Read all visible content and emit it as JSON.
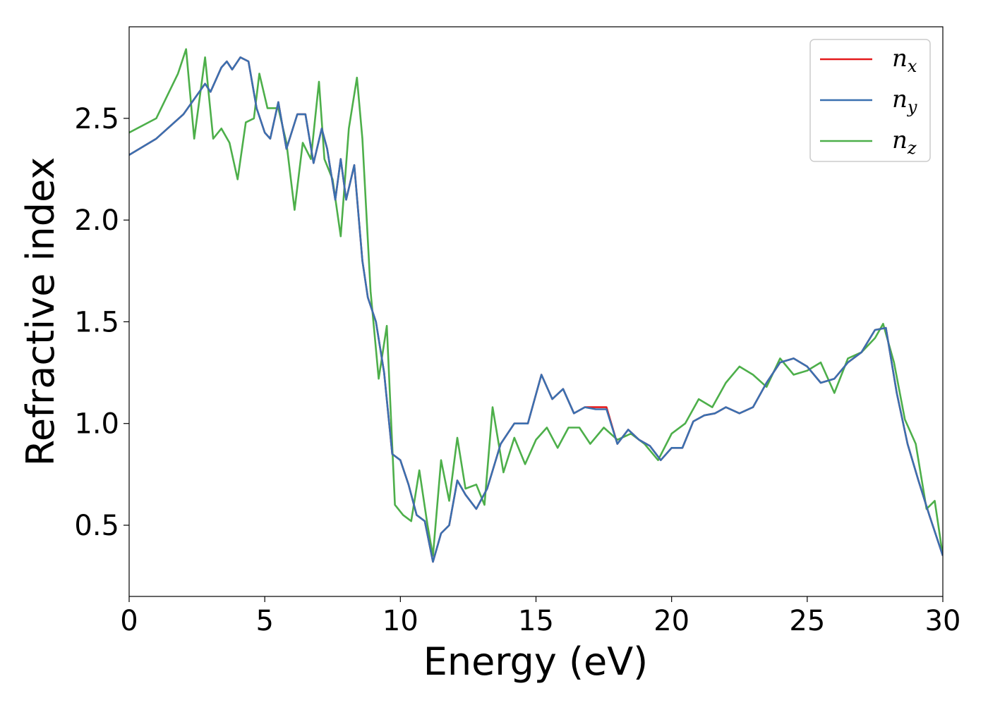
{
  "chart_data": {
    "type": "line",
    "title": "",
    "xlabel": "Energy (eV)",
    "ylabel": "Refractive index",
    "xlim": [
      0,
      30
    ],
    "ylim": [
      0.15,
      2.95
    ],
    "xticks": [
      0,
      5,
      10,
      15,
      20,
      25,
      30
    ],
    "xtick_labels": [
      "0",
      "5",
      "10",
      "15",
      "20",
      "25",
      "30"
    ],
    "yticks": [
      0.5,
      1.0,
      1.5,
      2.0,
      2.5
    ],
    "ytick_labels": [
      "0.5",
      "1.0",
      "1.5",
      "2.0",
      "2.5"
    ],
    "grid": false,
    "legend_position": "top-right",
    "series": [
      {
        "name": "n",
        "subscript": "x",
        "color": "#e41a1c",
        "x": [
          0,
          1,
          2,
          2.8,
          3,
          3.4,
          3.6,
          3.8,
          4.1,
          4.4,
          4.7,
          5.0,
          5.2,
          5.5,
          5.8,
          6.2,
          6.5,
          6.8,
          7.1,
          7.3,
          7.6,
          7.8,
          8.0,
          8.3,
          8.6,
          8.8,
          9.1,
          9.4,
          9.7,
          10.0,
          10.3,
          10.6,
          10.9,
          11.2,
          11.5,
          11.8,
          12.1,
          12.4,
          12.8,
          13.2,
          13.7,
          14.2,
          14.7,
          15.2,
          15.6,
          16.0,
          16.4,
          16.8,
          17.2,
          17.6,
          18.0,
          18.4,
          18.8,
          19.2,
          19.6,
          20.0,
          20.4,
          20.8,
          21.2,
          21.6,
          22.0,
          22.5,
          23.0,
          23.5,
          24.0,
          24.5,
          25.0,
          25.5,
          26.0,
          26.5,
          27.0,
          27.5,
          27.9,
          28.3,
          28.7,
          29.1,
          29.5,
          30.0
        ],
        "y": [
          2.32,
          2.4,
          2.52,
          2.67,
          2.63,
          2.75,
          2.78,
          2.74,
          2.8,
          2.78,
          2.55,
          2.43,
          2.4,
          2.58,
          2.35,
          2.52,
          2.52,
          2.28,
          2.45,
          2.35,
          2.1,
          2.3,
          2.1,
          2.27,
          1.8,
          1.62,
          1.5,
          1.25,
          0.85,
          0.82,
          0.7,
          0.55,
          0.52,
          0.32,
          0.46,
          0.5,
          0.72,
          0.65,
          0.58,
          0.68,
          0.9,
          1.0,
          1.0,
          1.24,
          1.12,
          1.17,
          1.05,
          1.08,
          1.08,
          1.08,
          0.9,
          0.97,
          0.92,
          0.89,
          0.82,
          0.88,
          0.88,
          1.01,
          1.04,
          1.05,
          1.08,
          1.05,
          1.08,
          1.2,
          1.3,
          1.32,
          1.28,
          1.2,
          1.22,
          1.3,
          1.35,
          1.46,
          1.47,
          1.15,
          0.9,
          0.72,
          0.55,
          0.35
        ]
      },
      {
        "name": "n",
        "subscript": "y",
        "color": "#3a70b0",
        "x": [
          0,
          1,
          2,
          2.8,
          3,
          3.4,
          3.6,
          3.8,
          4.1,
          4.4,
          4.7,
          5.0,
          5.2,
          5.5,
          5.8,
          6.2,
          6.5,
          6.8,
          7.1,
          7.3,
          7.6,
          7.8,
          8.0,
          8.3,
          8.6,
          8.8,
          9.1,
          9.4,
          9.7,
          10.0,
          10.3,
          10.6,
          10.9,
          11.2,
          11.5,
          11.8,
          12.1,
          12.4,
          12.8,
          13.2,
          13.7,
          14.2,
          14.7,
          15.2,
          15.6,
          16.0,
          16.4,
          16.8,
          17.2,
          17.6,
          18.0,
          18.4,
          18.8,
          19.2,
          19.6,
          20.0,
          20.4,
          20.8,
          21.2,
          21.6,
          22.0,
          22.5,
          23.0,
          23.5,
          24.0,
          24.5,
          25.0,
          25.5,
          26.0,
          26.5,
          27.0,
          27.5,
          27.9,
          28.3,
          28.7,
          29.1,
          29.5,
          30.0
        ],
        "y": [
          2.32,
          2.4,
          2.52,
          2.67,
          2.63,
          2.75,
          2.78,
          2.74,
          2.8,
          2.78,
          2.55,
          2.43,
          2.4,
          2.58,
          2.35,
          2.52,
          2.52,
          2.28,
          2.45,
          2.35,
          2.1,
          2.3,
          2.1,
          2.27,
          1.8,
          1.62,
          1.5,
          1.25,
          0.85,
          0.82,
          0.7,
          0.55,
          0.52,
          0.32,
          0.46,
          0.5,
          0.72,
          0.65,
          0.58,
          0.68,
          0.9,
          1.0,
          1.0,
          1.24,
          1.12,
          1.17,
          1.05,
          1.08,
          1.07,
          1.07,
          0.9,
          0.97,
          0.92,
          0.89,
          0.82,
          0.88,
          0.88,
          1.01,
          1.04,
          1.05,
          1.08,
          1.05,
          1.08,
          1.2,
          1.3,
          1.32,
          1.28,
          1.2,
          1.22,
          1.3,
          1.35,
          1.46,
          1.47,
          1.15,
          0.9,
          0.72,
          0.55,
          0.35
        ]
      },
      {
        "name": "n",
        "subscript": "z",
        "color": "#4daf4a",
        "x": [
          0,
          1,
          1.8,
          2.1,
          2.4,
          2.8,
          3.1,
          3.4,
          3.7,
          4.0,
          4.3,
          4.6,
          4.8,
          5.1,
          5.5,
          5.8,
          6.1,
          6.4,
          6.7,
          7.0,
          7.2,
          7.5,
          7.8,
          8.1,
          8.4,
          8.6,
          8.9,
          9.2,
          9.5,
          9.8,
          10.1,
          10.4,
          10.7,
          11.0,
          11.2,
          11.5,
          11.8,
          12.1,
          12.4,
          12.8,
          13.1,
          13.4,
          13.8,
          14.2,
          14.6,
          15.0,
          15.4,
          15.8,
          16.2,
          16.6,
          17.0,
          17.5,
          18.0,
          18.5,
          19.0,
          19.5,
          20.0,
          20.5,
          21.0,
          21.5,
          22.0,
          22.5,
          23.0,
          23.5,
          24.0,
          24.5,
          25.0,
          25.5,
          26.0,
          26.5,
          27.0,
          27.5,
          27.8,
          28.2,
          28.6,
          29.0,
          29.4,
          29.7,
          30.0
        ],
        "y": [
          2.43,
          2.5,
          2.72,
          2.84,
          2.4,
          2.8,
          2.4,
          2.45,
          2.38,
          2.2,
          2.48,
          2.5,
          2.72,
          2.55,
          2.55,
          2.38,
          2.05,
          2.38,
          2.3,
          2.68,
          2.3,
          2.2,
          1.92,
          2.45,
          2.7,
          2.4,
          1.65,
          1.22,
          1.48,
          0.6,
          0.55,
          0.52,
          0.77,
          0.5,
          0.35,
          0.82,
          0.62,
          0.93,
          0.68,
          0.7,
          0.6,
          1.08,
          0.76,
          0.93,
          0.8,
          0.92,
          0.98,
          0.88,
          0.98,
          0.98,
          0.9,
          0.98,
          0.92,
          0.95,
          0.9,
          0.82,
          0.95,
          1.0,
          1.12,
          1.08,
          1.2,
          1.28,
          1.24,
          1.18,
          1.32,
          1.24,
          1.26,
          1.3,
          1.15,
          1.32,
          1.35,
          1.42,
          1.49,
          1.3,
          1.02,
          0.9,
          0.58,
          0.62,
          0.35
        ]
      }
    ]
  }
}
